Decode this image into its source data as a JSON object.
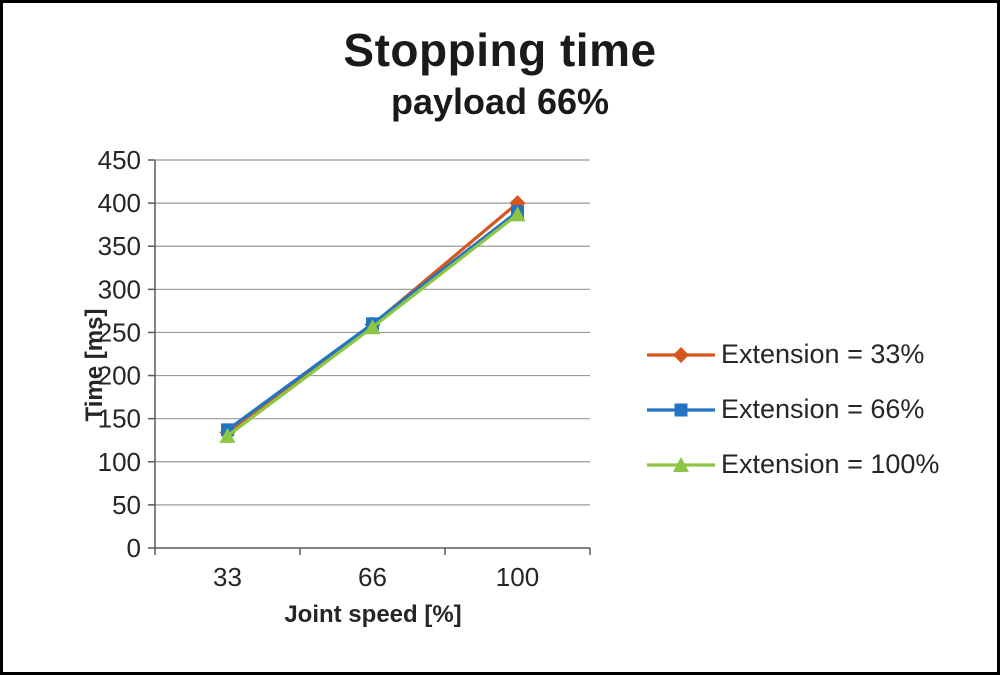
{
  "chart_data": {
    "type": "line",
    "title": "Stopping time",
    "subtitle": "payload 66%",
    "xlabel": "Joint speed [%]",
    "ylabel": "Time [ms]",
    "categories": [
      "33",
      "66",
      "100"
    ],
    "y_ticks": [
      0,
      50,
      100,
      150,
      200,
      250,
      300,
      350,
      400,
      450
    ],
    "ylim": [
      0,
      450
    ],
    "grid": true,
    "legend_position": "right",
    "series": [
      {
        "name": "Extension = 33%",
        "marker": "diamond",
        "color": "#D6571E",
        "values": [
          134,
          259,
          400
        ]
      },
      {
        "name": "Extension = 66%",
        "marker": "square",
        "color": "#2374C4",
        "values": [
          137,
          260,
          390
        ]
      },
      {
        "name": "Extension = 100%",
        "marker": "triangle",
        "color": "#8DC642",
        "values": [
          130,
          256,
          387
        ]
      }
    ],
    "colors": {
      "grid": "#9a9a9a",
      "axis": "#595959",
      "text": "#262626",
      "frame_border": "#000000"
    }
  }
}
